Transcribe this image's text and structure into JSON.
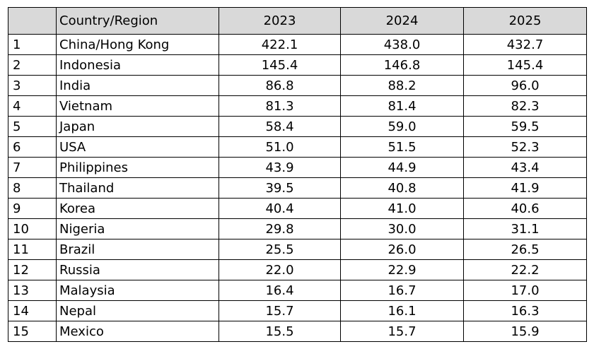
{
  "chart_data": {
    "type": "table",
    "columns": [
      "",
      "Country/Region",
      "2023",
      "2024",
      "2025"
    ],
    "rows": [
      {
        "rank": "1",
        "country": "China/Hong Kong",
        "values": [
          "422.1",
          "438.0",
          "432.7"
        ]
      },
      {
        "rank": "2",
        "country": "Indonesia",
        "values": [
          "145.4",
          "146.8",
          "145.4"
        ]
      },
      {
        "rank": "3",
        "country": "India",
        "values": [
          "86.8",
          "88.2",
          "96.0"
        ]
      },
      {
        "rank": "4",
        "country": "Vietnam",
        "values": [
          "81.3",
          "81.4",
          "82.3"
        ]
      },
      {
        "rank": "5",
        "country": "Japan",
        "values": [
          "58.4",
          "59.0",
          "59.5"
        ]
      },
      {
        "rank": "6",
        "country": "USA",
        "values": [
          "51.0",
          "51.5",
          "52.3"
        ]
      },
      {
        "rank": "7",
        "country": "Philippines",
        "values": [
          "43.9",
          "44.9",
          "43.4"
        ]
      },
      {
        "rank": "8",
        "country": "Thailand",
        "values": [
          "39.5",
          "40.8",
          "41.9"
        ]
      },
      {
        "rank": "9",
        "country": "Korea",
        "values": [
          "40.4",
          "41.0",
          "40.6"
        ]
      },
      {
        "rank": "10",
        "country": "Nigeria",
        "values": [
          "29.8",
          "30.0",
          "31.1"
        ]
      },
      {
        "rank": "11",
        "country": "Brazil",
        "values": [
          "25.5",
          "26.0",
          "26.5"
        ]
      },
      {
        "rank": "12",
        "country": "Russia",
        "values": [
          "22.0",
          "22.9",
          "22.2"
        ]
      },
      {
        "rank": "13",
        "country": "Malaysia",
        "values": [
          "16.4",
          "16.7",
          "17.0"
        ]
      },
      {
        "rank": "14",
        "country": "Nepal",
        "values": [
          "15.7",
          "16.1",
          "16.3"
        ]
      },
      {
        "rank": "15",
        "country": "Mexico",
        "values": [
          "15.5",
          "15.7",
          "15.9"
        ]
      }
    ],
    "header_background": "#d9d9d9"
  }
}
